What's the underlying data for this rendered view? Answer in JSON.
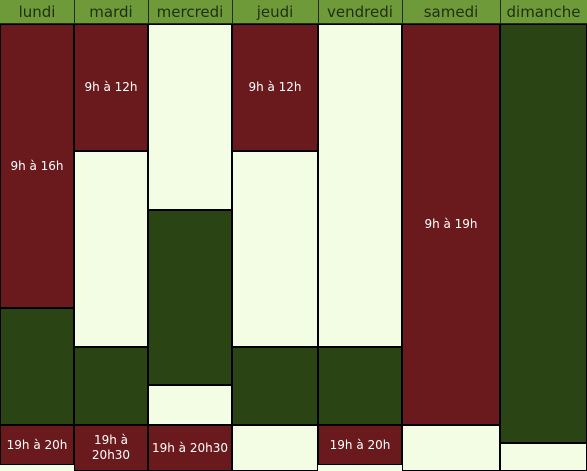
{
  "days": [
    {
      "label": "lundi"
    },
    {
      "label": "mardi"
    },
    {
      "label": "mercredi"
    },
    {
      "label": "jeudi"
    },
    {
      "label": "vendredi"
    },
    {
      "label": "samedi"
    },
    {
      "label": "dimanche"
    }
  ],
  "slots": {
    "lundi": [
      "9h à 16h",
      "",
      "19h à 20h"
    ],
    "mardi": [
      "9h à 12h",
      "",
      "",
      "19h à 20h30"
    ],
    "mercredi": [
      "",
      "",
      "",
      "19h à 20h30"
    ],
    "jeudi": [
      "9h à 12h",
      "",
      "",
      ""
    ],
    "vendredi": [
      "",
      "",
      "19h à 20h"
    ],
    "samedi": [
      "9h à 19h",
      ""
    ],
    "dimanche": [
      "",
      ""
    ]
  },
  "colors": {
    "header": "#6e9a3a",
    "red": "#6a1a1c",
    "dark_green": "#2b4414",
    "light": "#f2fde4"
  }
}
